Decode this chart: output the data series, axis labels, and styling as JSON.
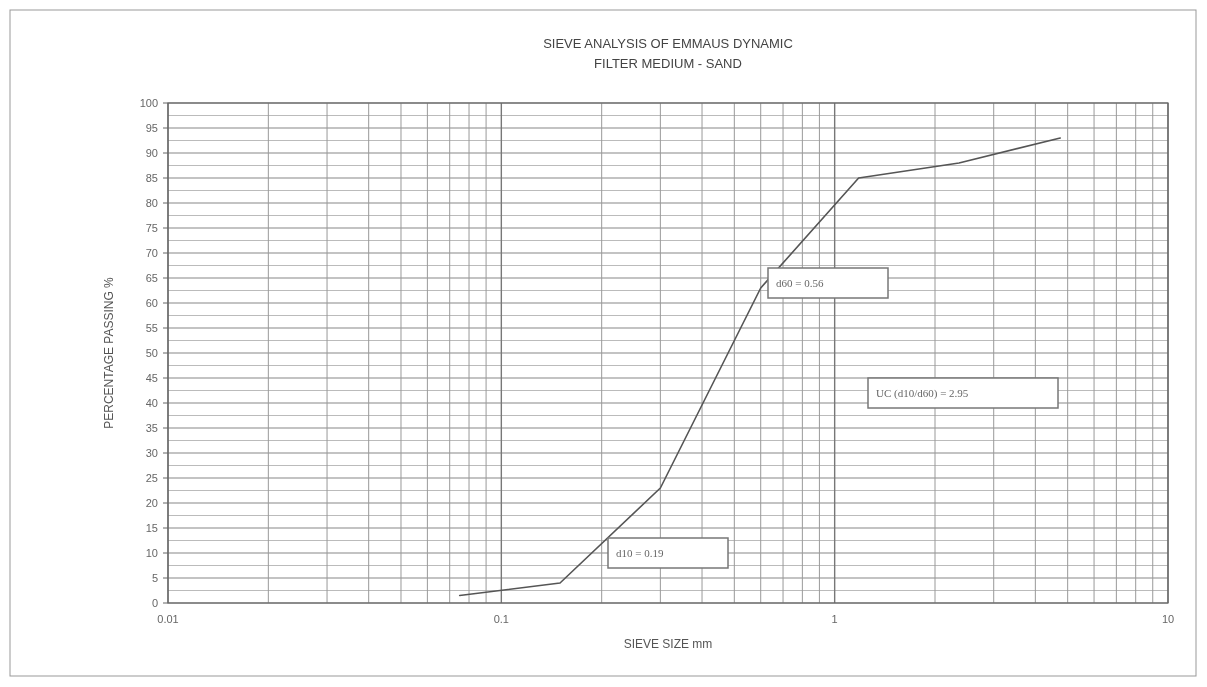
{
  "chart_data": {
    "type": "line",
    "title": "SIEVE ANALYSIS OF EMMAUS DYNAMIC",
    "subtitle": "FILTER MEDIUM - SAND",
    "xlabel": "SIEVE SIZE mm",
    "ylabel": "PERCENTAGE PASSING %",
    "log": "x",
    "x": [
      0.075,
      0.15,
      0.3,
      0.6,
      1.18,
      2.36,
      4.75
    ],
    "series": [
      {
        "color": "#555555",
        "values": [
          1.5,
          4,
          23,
          63,
          85,
          88,
          93
        ]
      }
    ],
    "xlim": [
      0.01,
      10
    ],
    "xticks": [
      0.01,
      0.1,
      1,
      10
    ],
    "ylim": [
      0,
      100
    ],
    "yticks": [
      0,
      5,
      10,
      15,
      20,
      25,
      30,
      35,
      40,
      45,
      50,
      55,
      60,
      65,
      70,
      75,
      80,
      85,
      90,
      95,
      100
    ],
    "grid": true,
    "marker": "none",
    "line_style": "solid",
    "annotations": [
      "d60 = 0.56",
      "d10 = 0.19",
      "UC (d10/d60) = 2.95"
    ]
  }
}
